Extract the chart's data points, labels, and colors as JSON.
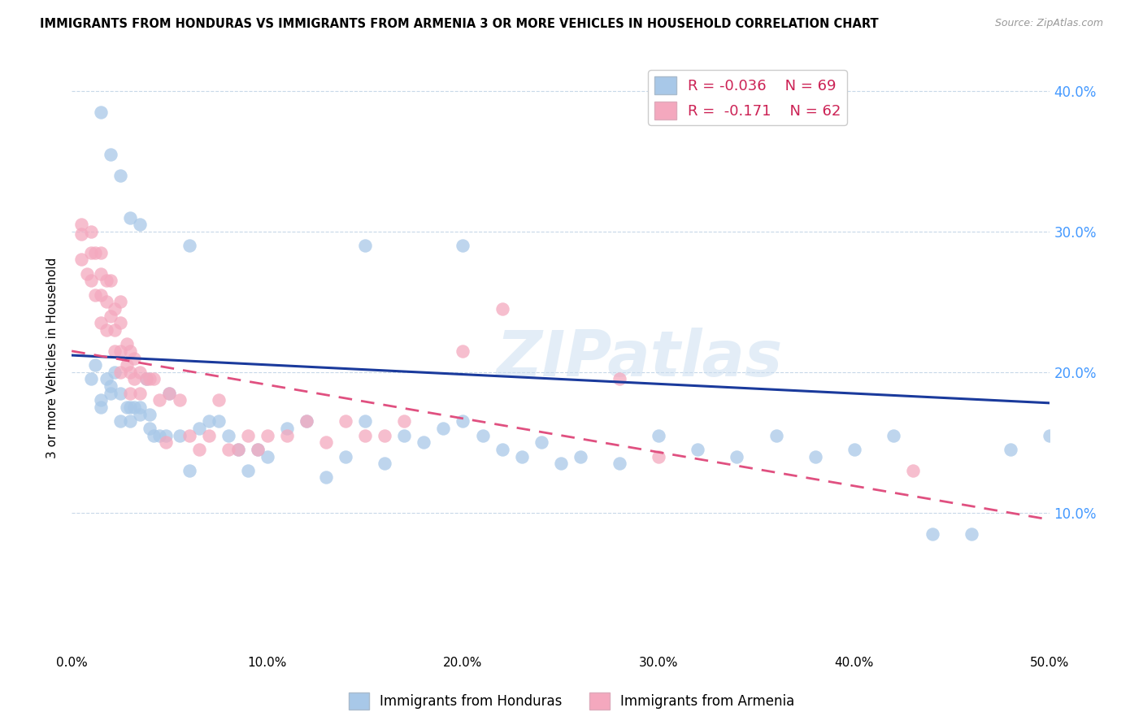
{
  "title": "IMMIGRANTS FROM HONDURAS VS IMMIGRANTS FROM ARMENIA 3 OR MORE VEHICLES IN HOUSEHOLD CORRELATION CHART",
  "source": "Source: ZipAtlas.com",
  "ylabel": "3 or more Vehicles in Household",
  "xlim": [
    0.0,
    0.5
  ],
  "ylim": [
    0.0,
    0.42
  ],
  "xticks": [
    0.0,
    0.1,
    0.2,
    0.3,
    0.4,
    0.5
  ],
  "yticks": [
    0.1,
    0.2,
    0.3,
    0.4
  ],
  "xtick_labels": [
    "0.0%",
    "10.0%",
    "20.0%",
    "30.0%",
    "40.0%",
    "50.0%"
  ],
  "ytick_labels": [
    "10.0%",
    "20.0%",
    "30.0%",
    "40.0%"
  ],
  "legend_labels": [
    "Immigrants from Honduras",
    "Immigrants from Armenia"
  ],
  "R_honduras": -0.036,
  "N_honduras": 69,
  "R_armenia": -0.171,
  "N_armenia": 62,
  "color_honduras": "#a8c8e8",
  "color_armenia": "#f4a8be",
  "line_color_honduras": "#1a3a9c",
  "line_color_armenia": "#e05080",
  "watermark": "ZIPatlas",
  "honduras_line": [
    0.0,
    0.212,
    0.5,
    0.178
  ],
  "armenia_line": [
    0.0,
    0.215,
    0.5,
    0.095
  ],
  "honduras_x": [
    0.01,
    0.012,
    0.015,
    0.015,
    0.018,
    0.02,
    0.02,
    0.022,
    0.025,
    0.025,
    0.028,
    0.03,
    0.03,
    0.032,
    0.035,
    0.035,
    0.038,
    0.04,
    0.04,
    0.042,
    0.045,
    0.048,
    0.05,
    0.055,
    0.06,
    0.065,
    0.07,
    0.075,
    0.08,
    0.085,
    0.09,
    0.095,
    0.1,
    0.11,
    0.12,
    0.13,
    0.14,
    0.15,
    0.16,
    0.17,
    0.18,
    0.19,
    0.2,
    0.21,
    0.22,
    0.23,
    0.24,
    0.25,
    0.26,
    0.28,
    0.3,
    0.32,
    0.34,
    0.36,
    0.38,
    0.4,
    0.42,
    0.44,
    0.46,
    0.48,
    0.015,
    0.02,
    0.025,
    0.03,
    0.035,
    0.06,
    0.15,
    0.2,
    0.5
  ],
  "honduras_y": [
    0.195,
    0.205,
    0.18,
    0.175,
    0.195,
    0.19,
    0.185,
    0.2,
    0.165,
    0.185,
    0.175,
    0.175,
    0.165,
    0.175,
    0.175,
    0.17,
    0.195,
    0.16,
    0.17,
    0.155,
    0.155,
    0.155,
    0.185,
    0.155,
    0.13,
    0.16,
    0.165,
    0.165,
    0.155,
    0.145,
    0.13,
    0.145,
    0.14,
    0.16,
    0.165,
    0.125,
    0.14,
    0.165,
    0.135,
    0.155,
    0.15,
    0.16,
    0.165,
    0.155,
    0.145,
    0.14,
    0.15,
    0.135,
    0.14,
    0.135,
    0.155,
    0.145,
    0.14,
    0.155,
    0.14,
    0.145,
    0.155,
    0.085,
    0.085,
    0.145,
    0.385,
    0.355,
    0.34,
    0.31,
    0.305,
    0.29,
    0.29,
    0.29,
    0.155
  ],
  "armenia_x": [
    0.005,
    0.005,
    0.005,
    0.008,
    0.01,
    0.01,
    0.01,
    0.012,
    0.012,
    0.015,
    0.015,
    0.015,
    0.015,
    0.018,
    0.018,
    0.018,
    0.02,
    0.02,
    0.022,
    0.022,
    0.022,
    0.025,
    0.025,
    0.025,
    0.025,
    0.028,
    0.028,
    0.03,
    0.03,
    0.03,
    0.032,
    0.032,
    0.035,
    0.035,
    0.038,
    0.04,
    0.042,
    0.045,
    0.048,
    0.05,
    0.055,
    0.06,
    0.065,
    0.07,
    0.075,
    0.08,
    0.085,
    0.09,
    0.095,
    0.1,
    0.11,
    0.12,
    0.13,
    0.14,
    0.15,
    0.16,
    0.17,
    0.2,
    0.22,
    0.28,
    0.3,
    0.43
  ],
  "armenia_y": [
    0.305,
    0.298,
    0.28,
    0.27,
    0.3,
    0.285,
    0.265,
    0.285,
    0.255,
    0.285,
    0.27,
    0.255,
    0.235,
    0.265,
    0.25,
    0.23,
    0.265,
    0.24,
    0.245,
    0.23,
    0.215,
    0.25,
    0.235,
    0.215,
    0.2,
    0.22,
    0.205,
    0.215,
    0.2,
    0.185,
    0.21,
    0.195,
    0.2,
    0.185,
    0.195,
    0.195,
    0.195,
    0.18,
    0.15,
    0.185,
    0.18,
    0.155,
    0.145,
    0.155,
    0.18,
    0.145,
    0.145,
    0.155,
    0.145,
    0.155,
    0.155,
    0.165,
    0.15,
    0.165,
    0.155,
    0.155,
    0.165,
    0.215,
    0.245,
    0.195,
    0.14,
    0.13
  ]
}
